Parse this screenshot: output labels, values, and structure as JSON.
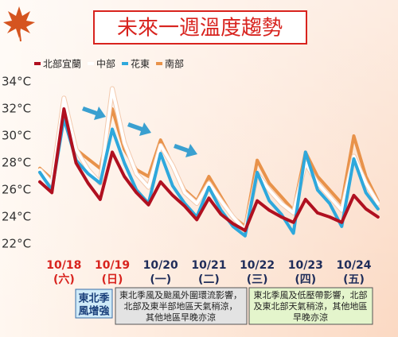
{
  "chart_data": {
    "type": "line",
    "title": "未來一週溫度趨勢",
    "x": [
      0,
      6,
      12,
      18,
      24,
      30,
      36,
      42,
      48,
      54,
      60,
      66,
      72,
      78,
      84,
      90,
      96,
      102,
      108,
      114,
      120,
      126,
      132,
      138,
      144,
      150,
      156,
      162,
      168
    ],
    "xlim": [
      0,
      174
    ],
    "xticks": [
      {
        "value": 12,
        "label": "10/18"
      },
      {
        "value": 36,
        "label": "10/19"
      },
      {
        "value": 60,
        "label": "10/20"
      },
      {
        "value": 84,
        "label": "10/21"
      },
      {
        "value": 108,
        "label": "10/22"
      },
      {
        "value": 132,
        "label": "10/23"
      },
      {
        "value": 156,
        "label": "10/24"
      }
    ],
    "weekdays": [
      "(六)",
      "(日)",
      "(一)",
      "(二)",
      "(三)",
      "(四)",
      "(五)"
    ],
    "xtick_colors": [
      "#d8231e",
      "#d8231e",
      "#1f2d5a",
      "#1f2d5a",
      "#1f2d5a",
      "#1f2d5a",
      "#1f2d5a"
    ],
    "ylim": [
      22,
      34
    ],
    "yticks": [
      {
        "value": 22,
        "label": "22°C"
      },
      {
        "value": 24,
        "label": "24°C"
      },
      {
        "value": 26,
        "label": "26°C"
      },
      {
        "value": 28,
        "label": "28°C"
      },
      {
        "value": 30,
        "label": "30°C"
      },
      {
        "value": 32,
        "label": "32°C"
      },
      {
        "value": 34,
        "label": "34°C"
      }
    ],
    "grid": false,
    "series": [
      {
        "name": "北部宜蘭",
        "color": "#b01020",
        "values": [
          26.6,
          25.8,
          32.0,
          28.0,
          26.5,
          25.3,
          28.8,
          27.0,
          25.8,
          24.9,
          26.6,
          25.6,
          24.8,
          23.8,
          25.4,
          24.2,
          23.5,
          23.0,
          25.2,
          24.5,
          24.0,
          23.6,
          25.3,
          24.3,
          24.0,
          23.6,
          25.6,
          24.6,
          24.0
        ]
      },
      {
        "name": "中部",
        "color": "#ffffff",
        "values": [
          27.5,
          26.5,
          32.8,
          29.0,
          27.5,
          26.5,
          33.5,
          29.5,
          27.2,
          26.2,
          29.3,
          27.8,
          25.8,
          25.0,
          26.5,
          25.2,
          24.0,
          23.0,
          27.2,
          26.0,
          25.0,
          24.3,
          28.0,
          26.5,
          25.5,
          24.5,
          28.5,
          26.5,
          25.0
        ]
      },
      {
        "name": "花東",
        "color": "#2ea8dc",
        "values": [
          27.3,
          26.0,
          31.3,
          28.2,
          27.2,
          26.5,
          30.5,
          28.0,
          26.0,
          25.0,
          28.7,
          26.3,
          25.0,
          24.0,
          26.2,
          24.5,
          23.3,
          22.6,
          27.3,
          25.2,
          24.2,
          22.8,
          28.8,
          26.0,
          25.0,
          23.3,
          28.3,
          25.8,
          24.6
        ]
      },
      {
        "name": "南部",
        "color": "#e8924a",
        "values": [
          27.6,
          26.8,
          32.0,
          29.0,
          28.3,
          27.6,
          32.0,
          29.0,
          27.5,
          27.0,
          29.7,
          27.8,
          26.0,
          25.2,
          27.0,
          25.5,
          24.0,
          23.3,
          28.2,
          26.5,
          25.5,
          24.5,
          28.8,
          27.0,
          26.0,
          25.0,
          30.0,
          27.0,
          25.2
        ]
      }
    ],
    "annotations": [
      {
        "lines": [
          "東北季",
          "風增強"
        ]
      },
      {
        "lines": [
          "東北季風及颱風外圍環流影響，",
          "北部及東半部地區天氣稍涼，",
          "其他地區早晚亦涼"
        ]
      },
      {
        "lines": [
          "東北季風及低壓帶影響，北部",
          "及東北部天氣稍涼，其他地區",
          "早晚亦涼"
        ]
      }
    ]
  }
}
